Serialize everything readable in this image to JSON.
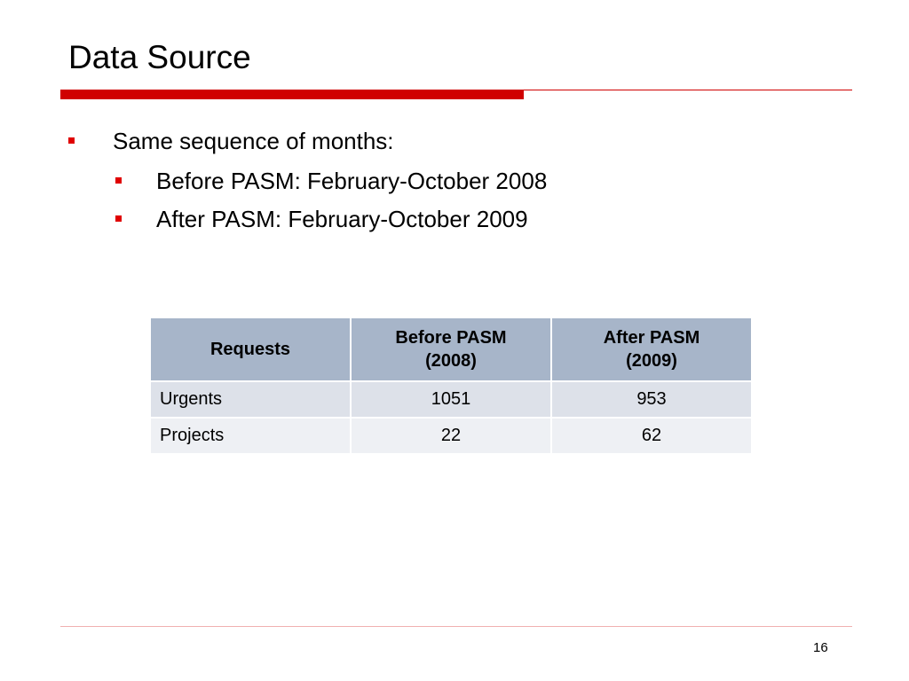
{
  "title": "Data Source",
  "bullets": [
    "Same sequence of months:"
  ],
  "sub_bullets": [
    "Before PASM: February-October 2008",
    "After PASM: February-October 2009"
  ],
  "table": {
    "header": [
      [
        "Requests"
      ],
      [
        "Before PASM",
        "(2008)"
      ],
      [
        "After PASM",
        "(2009)"
      ]
    ],
    "rows": [
      [
        "Urgents",
        1051,
        953
      ],
      [
        "Projects",
        22,
        62
      ]
    ]
  },
  "page_number": 16
}
